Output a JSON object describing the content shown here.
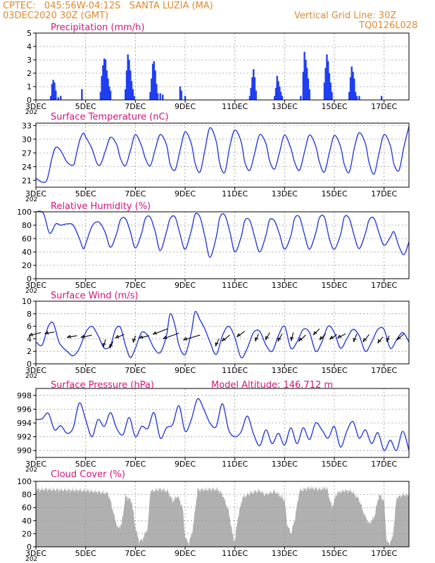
{
  "header": {
    "line1_left": "CPTEC:   045:56W-04:12S   SANTA LUZIA (MA)",
    "line2_left": "03DEC2020 30Z (GMT)",
    "line1_right": "Vertical Grid Line: 30Z",
    "line2_right": "TQ0126L028"
  },
  "colors": {
    "header": "#e08a2c",
    "panel_title": "#d6147a",
    "line": "#2a3fd6",
    "bar": "#1f3ff0",
    "cloud": "#b0b0b0",
    "grid": "#9a9a9a"
  },
  "x_ticks": [
    "3DEC",
    "5DEC",
    "7DEC",
    "9DEC",
    "11DEC",
    "13DEC",
    "15DEC",
    "17DEC"
  ],
  "x_tick_under": "202",
  "chart_data": [
    {
      "type": "bar",
      "title": "Precipitation (mm/h)",
      "ylim": [
        0,
        5
      ],
      "yticks": [
        0,
        1,
        2,
        3,
        4,
        5
      ],
      "x_range_days": [
        3,
        18
      ],
      "bars": [
        [
          3.6,
          0.3
        ],
        [
          3.65,
          1.2
        ],
        [
          3.7,
          1.5
        ],
        [
          3.75,
          1.3
        ],
        [
          3.8,
          0.7
        ],
        [
          3.9,
          0.2
        ],
        [
          4.0,
          0.3
        ],
        [
          4.85,
          0.8
        ],
        [
          5.6,
          0.6
        ],
        [
          5.65,
          1.8
        ],
        [
          5.7,
          2.6
        ],
        [
          5.75,
          3.1
        ],
        [
          5.8,
          3.0
        ],
        [
          5.85,
          2.2
        ],
        [
          5.9,
          1.6
        ],
        [
          5.95,
          1.0
        ],
        [
          6.0,
          0.7
        ],
        [
          6.6,
          0.8
        ],
        [
          6.65,
          2.2
        ],
        [
          6.7,
          3.4
        ],
        [
          6.75,
          3.0
        ],
        [
          6.8,
          2.2
        ],
        [
          6.85,
          1.4
        ],
        [
          6.9,
          0.8
        ],
        [
          6.95,
          0.3
        ],
        [
          7.6,
          0.6
        ],
        [
          7.65,
          1.6
        ],
        [
          7.7,
          2.7
        ],
        [
          7.75,
          2.9
        ],
        [
          7.8,
          2.2
        ],
        [
          7.85,
          1.2
        ],
        [
          7.9,
          0.5
        ],
        [
          8.0,
          0.5
        ],
        [
          8.1,
          0.4
        ],
        [
          8.8,
          1.0
        ],
        [
          8.85,
          0.7
        ],
        [
          9.0,
          0.3
        ],
        [
          11.6,
          0.3
        ],
        [
          11.65,
          0.9
        ],
        [
          11.7,
          1.7
        ],
        [
          11.75,
          2.3
        ],
        [
          11.8,
          1.7
        ],
        [
          11.85,
          0.7
        ],
        [
          12.6,
          0.3
        ],
        [
          12.65,
          0.9
        ],
        [
          12.7,
          1.8
        ],
        [
          12.75,
          1.4
        ],
        [
          12.8,
          1.0
        ],
        [
          12.85,
          0.6
        ],
        [
          12.9,
          0.3
        ],
        [
          13.65,
          0.3
        ],
        [
          13.75,
          2.1
        ],
        [
          13.8,
          3.6
        ],
        [
          13.85,
          3.0
        ],
        [
          13.9,
          2.4
        ],
        [
          13.95,
          1.6
        ],
        [
          14.0,
          0.8
        ],
        [
          14.6,
          1.3
        ],
        [
          14.65,
          2.4
        ],
        [
          14.7,
          3.4
        ],
        [
          14.75,
          2.9
        ],
        [
          14.8,
          2.0
        ],
        [
          14.85,
          1.3
        ],
        [
          14.9,
          0.6
        ],
        [
          15.6,
          0.6
        ],
        [
          15.65,
          1.7
        ],
        [
          15.7,
          2.5
        ],
        [
          15.75,
          2.1
        ],
        [
          15.8,
          1.6
        ],
        [
          15.85,
          0.6
        ],
        [
          15.9,
          0.3
        ],
        [
          16.0,
          0.3
        ],
        [
          16.9,
          0.3
        ]
      ]
    },
    {
      "type": "line",
      "title": "Surface Temperature (nC)",
      "ylim": [
        19.5,
        33.5
      ],
      "yticks": [
        21,
        24,
        27,
        30,
        33
      ],
      "x": [
        3.0,
        3.25,
        3.45,
        3.65,
        3.8,
        4.0,
        4.25,
        4.5,
        4.6,
        4.75,
        4.9,
        5.0,
        5.25,
        5.45,
        5.6,
        5.8,
        6.0,
        6.25,
        6.4,
        6.6,
        6.8,
        7.0,
        7.25,
        7.4,
        7.6,
        7.8,
        8.0,
        8.25,
        8.4,
        8.6,
        8.8,
        9.0,
        9.25,
        9.4,
        9.6,
        9.8,
        10.0,
        10.25,
        10.4,
        10.6,
        10.8,
        11.0,
        11.25,
        11.4,
        11.6,
        11.8,
        12.0,
        12.25,
        12.4,
        12.6,
        12.8,
        13.0,
        13.25,
        13.4,
        13.6,
        13.8,
        14.0,
        14.25,
        14.4,
        14.6,
        14.8,
        15.0,
        15.25,
        15.4,
        15.6,
        15.8,
        16.0,
        16.25,
        16.4,
        16.6,
        16.8,
        17.0,
        17.25,
        17.4,
        17.6,
        17.8,
        18.0
      ],
      "y": [
        21.5,
        20.6,
        21.2,
        26.0,
        28.2,
        27.5,
        25.0,
        24.3,
        26.0,
        29.5,
        31.3,
        30.5,
        28.0,
        24.8,
        24.5,
        27.5,
        30.4,
        28.8,
        25.8,
        24.2,
        27.5,
        31.0,
        28.5,
        25.8,
        24.2,
        27.8,
        31.0,
        28.8,
        24.5,
        23.3,
        27.6,
        31.6,
        29.0,
        24.8,
        22.8,
        27.8,
        32.5,
        29.5,
        24.5,
        22.8,
        28.5,
        32.0,
        29.5,
        25.0,
        23.2,
        27.0,
        31.0,
        29.0,
        25.2,
        23.5,
        27.2,
        30.9,
        28.0,
        25.0,
        23.2,
        27.2,
        30.9,
        28.5,
        25.0,
        22.8,
        27.0,
        30.8,
        28.4,
        24.5,
        22.8,
        28.0,
        31.4,
        29.0,
        24.8,
        22.4,
        27.0,
        31.0,
        28.6,
        24.5,
        23.2,
        28.4,
        32.8
      ]
    },
    {
      "type": "line",
      "title": "Relative Humidity (%)",
      "ylim": [
        0,
        100
      ],
      "yticks": [
        0,
        20,
        40,
        60,
        80,
        100
      ],
      "x": [
        3.0,
        3.3,
        3.55,
        3.8,
        4.0,
        4.25,
        4.5,
        4.75,
        4.9,
        5.0,
        5.25,
        5.45,
        5.6,
        5.8,
        6.0,
        6.25,
        6.4,
        6.6,
        6.8,
        7.0,
        7.25,
        7.4,
        7.6,
        7.8,
        8.0,
        8.25,
        8.4,
        8.6,
        8.8,
        9.0,
        9.25,
        9.4,
        9.6,
        9.8,
        10.0,
        10.25,
        10.4,
        10.6,
        10.8,
        11.0,
        11.25,
        11.4,
        11.6,
        11.8,
        12.0,
        12.25,
        12.4,
        12.6,
        12.8,
        13.0,
        13.25,
        13.4,
        13.6,
        13.8,
        14.0,
        14.25,
        14.4,
        14.6,
        14.8,
        15.0,
        15.25,
        15.4,
        15.6,
        15.8,
        16.0,
        16.25,
        16.4,
        16.6,
        16.8,
        17.0,
        17.25,
        17.4,
        17.6,
        17.8,
        18.0
      ],
      "y": [
        100,
        98,
        68,
        82,
        80,
        82,
        80,
        60,
        45,
        52,
        78,
        85,
        82,
        68,
        47,
        68,
        88,
        90,
        70,
        46,
        68,
        90,
        92,
        70,
        42,
        70,
        90,
        92,
        66,
        44,
        72,
        96,
        92,
        62,
        32,
        62,
        92,
        95,
        70,
        40,
        62,
        87,
        87,
        62,
        40,
        65,
        88,
        86,
        66,
        44,
        64,
        90,
        92,
        66,
        44,
        68,
        91,
        92,
        60,
        44,
        66,
        92,
        90,
        64,
        45,
        68,
        88,
        90,
        68,
        50,
        62,
        70,
        48,
        36,
        55
      ]
    },
    {
      "type": "line",
      "title": "Surface Wind (m/s)",
      "ylim": [
        0,
        10
      ],
      "yticks": [
        0,
        2,
        4,
        6,
        8,
        10
      ],
      "x": [
        3.0,
        3.25,
        3.5,
        3.7,
        3.9,
        4.0,
        4.25,
        4.5,
        4.75,
        5.0,
        5.25,
        5.5,
        5.75,
        6.0,
        6.2,
        6.4,
        6.6,
        6.8,
        7.0,
        7.25,
        7.5,
        7.75,
        8.0,
        8.25,
        8.4,
        8.6,
        8.75,
        9.0,
        9.25,
        9.4,
        9.6,
        9.8,
        10.0,
        10.25,
        10.5,
        10.75,
        11.0,
        11.25,
        11.5,
        11.75,
        12.0,
        12.25,
        12.5,
        12.75,
        13.0,
        13.25,
        13.5,
        13.75,
        14.0,
        14.25,
        14.5,
        14.75,
        15.0,
        15.25,
        15.5,
        15.75,
        16.0,
        16.25,
        16.5,
        16.75,
        17.0,
        17.25,
        17.5,
        17.75,
        18.0
      ],
      "y": [
        3.5,
        3.0,
        6.0,
        6.5,
        3.8,
        3.0,
        2.0,
        1.3,
        2.5,
        5.0,
        6.0,
        4.5,
        2.5,
        3.0,
        5.5,
        5.8,
        3.0,
        1.0,
        2.5,
        5.0,
        4.5,
        2.5,
        1.8,
        4.5,
        8.0,
        6.0,
        3.0,
        1.5,
        5.0,
        8.3,
        7.0,
        5.5,
        3.5,
        1.5,
        4.5,
        6.0,
        4.2,
        1.0,
        2.5,
        5.0,
        5.2,
        3.0,
        2.0,
        4.5,
        6.0,
        2.5,
        3.5,
        5.5,
        5.0,
        2.0,
        3.5,
        6.0,
        5.0,
        2.5,
        4.0,
        5.5,
        4.5,
        2.0,
        3.5,
        5.5,
        5.5,
        2.5,
        3.8,
        5.0,
        3.5
      ],
      "arrows": [
        [
          3.2,
          5.0,
          -1.2,
          -0.5
        ],
        [
          3.75,
          5.1,
          -1.0,
          -0.3
        ],
        [
          4.65,
          4.5,
          -1.0,
          -0.3
        ],
        [
          5.25,
          4.6,
          -1.1,
          -0.4
        ],
        [
          5.8,
          3.9,
          -0.2,
          -1.2
        ],
        [
          6.1,
          3.6,
          -0.3,
          -1.1
        ],
        [
          6.55,
          4.7,
          -0.9,
          -0.6
        ],
        [
          7.0,
          4.5,
          -0.2,
          -1.1
        ],
        [
          7.55,
          4.5,
          -1.0,
          -0.4
        ],
        [
          8.3,
          5.6,
          -1.5,
          -0.9
        ],
        [
          8.75,
          4.9,
          -1.6,
          -0.9
        ],
        [
          9.6,
          4.6,
          -1.7,
          -0.8
        ],
        [
          10.35,
          4.0,
          -0.3,
          -1.2
        ],
        [
          10.8,
          4.6,
          -0.8,
          -1.0
        ],
        [
          11.4,
          5.2,
          -0.8,
          -0.9
        ],
        [
          11.95,
          4.8,
          -0.3,
          -1.2
        ],
        [
          12.4,
          5.0,
          -0.4,
          -1.2
        ],
        [
          12.9,
          4.8,
          -0.4,
          -1.2
        ],
        [
          13.35,
          5.0,
          -0.2,
          -1.3
        ],
        [
          13.85,
          4.6,
          -0.7,
          -1.0
        ],
        [
          14.4,
          5.6,
          -0.6,
          -1.0
        ],
        [
          14.65,
          4.8,
          -0.6,
          -1.0
        ],
        [
          15.1,
          4.7,
          -0.7,
          -0.8
        ],
        [
          15.45,
          4.8,
          -0.8,
          -0.7
        ],
        [
          15.9,
          4.8,
          -0.3,
          -1.3
        ],
        [
          16.4,
          4.7,
          -0.6,
          -1.2
        ],
        [
          16.95,
          4.3,
          -0.5,
          -1.0
        ],
        [
          17.2,
          4.5,
          -0.2,
          -1.0
        ],
        [
          17.8,
          4.8,
          -0.7,
          -1.0
        ]
      ]
    },
    {
      "type": "line",
      "title": "Surface Pressure (hPa)",
      "annotation": "Model Altitude: 146.712 m",
      "ylim": [
        989,
        999
      ],
      "yticks": [
        990,
        992,
        994,
        996,
        998
      ],
      "x": [
        3.0,
        3.25,
        3.5,
        3.75,
        4.0,
        4.25,
        4.5,
        4.75,
        5.0,
        5.25,
        5.5,
        5.75,
        6.0,
        6.25,
        6.5,
        6.75,
        7.0,
        7.25,
        7.5,
        7.75,
        8.0,
        8.25,
        8.5,
        8.75,
        9.0,
        9.25,
        9.5,
        9.75,
        10.0,
        10.25,
        10.5,
        10.75,
        11.0,
        11.25,
        11.5,
        11.75,
        12.0,
        12.25,
        12.5,
        12.75,
        13.0,
        13.25,
        13.5,
        13.75,
        14.0,
        14.25,
        14.5,
        14.75,
        15.0,
        15.25,
        15.5,
        15.75,
        16.0,
        16.25,
        16.5,
        16.75,
        17.0,
        17.25,
        17.5,
        17.75,
        18.0
      ],
      "y": [
        994.5,
        994.6,
        995.4,
        993.0,
        993.6,
        992.5,
        993.3,
        996.9,
        994.5,
        992.0,
        994.5,
        993.5,
        995.5,
        993.2,
        992.3,
        994.8,
        992.0,
        993.5,
        993.2,
        995.5,
        991.8,
        993.3,
        993.8,
        996.5,
        992.8,
        994.5,
        997.5,
        996.0,
        994.0,
        993.5,
        996.8,
        993.0,
        992.0,
        992.7,
        995.0,
        992.4,
        990.7,
        993.0,
        991.0,
        992.5,
        990.8,
        993.3,
        991.0,
        993.3,
        991.6,
        994.0,
        993.0,
        991.8,
        993.5,
        990.5,
        992.8,
        994.2,
        991.8,
        993.0,
        991.0,
        992.6,
        990.0,
        991.5,
        990.0,
        992.8,
        990.0
      ]
    },
    {
      "type": "bar",
      "title": "Cloud Cover (%)",
      "ylim": [
        0,
        100
      ],
      "yticks": [
        0,
        20,
        40,
        60,
        80,
        100
      ],
      "x_range_days": [
        3,
        18
      ],
      "profile": [
        [
          3.0,
          88
        ],
        [
          3.15,
          87
        ],
        [
          3.3,
          88
        ],
        [
          4.0,
          87
        ],
        [
          5.0,
          86
        ],
        [
          5.9,
          82
        ],
        [
          6.0,
          70
        ],
        [
          6.1,
          55
        ],
        [
          6.2,
          40
        ],
        [
          6.3,
          28
        ],
        [
          6.45,
          35
        ],
        [
          6.6,
          78
        ],
        [
          6.85,
          70
        ],
        [
          7.0,
          30
        ],
        [
          7.15,
          8
        ],
        [
          7.3,
          12
        ],
        [
          7.5,
          30
        ],
        [
          7.6,
          85
        ],
        [
          8.0,
          88
        ],
        [
          8.3,
          85
        ],
        [
          8.5,
          70
        ],
        [
          8.7,
          78
        ],
        [
          8.9,
          60
        ],
        [
          9.0,
          15
        ],
        [
          9.15,
          5
        ],
        [
          9.3,
          25
        ],
        [
          9.5,
          87
        ],
        [
          10.0,
          88
        ],
        [
          10.3,
          88
        ],
        [
          10.5,
          80
        ],
        [
          10.75,
          55
        ],
        [
          10.9,
          20
        ],
        [
          11.0,
          8
        ],
        [
          11.1,
          40
        ],
        [
          11.3,
          75
        ],
        [
          11.6,
          82
        ],
        [
          12.0,
          86
        ],
        [
          12.2,
          80
        ],
        [
          12.4,
          82
        ],
        [
          12.6,
          85
        ],
        [
          13.0,
          72
        ],
        [
          13.1,
          35
        ],
        [
          13.25,
          20
        ],
        [
          13.4,
          40
        ],
        [
          13.6,
          86
        ],
        [
          14.0,
          90
        ],
        [
          14.4,
          88
        ],
        [
          14.7,
          90
        ],
        [
          14.9,
          60
        ],
        [
          15.1,
          82
        ],
        [
          15.4,
          86
        ],
        [
          15.7,
          85
        ],
        [
          16.0,
          72
        ],
        [
          16.2,
          50
        ],
        [
          16.4,
          35
        ],
        [
          16.6,
          45
        ],
        [
          16.8,
          80
        ],
        [
          17.0,
          70
        ],
        [
          17.1,
          10
        ],
        [
          17.2,
          4
        ],
        [
          17.35,
          15
        ],
        [
          17.5,
          75
        ],
        [
          17.8,
          80
        ],
        [
          18.0,
          78
        ]
      ]
    }
  ]
}
